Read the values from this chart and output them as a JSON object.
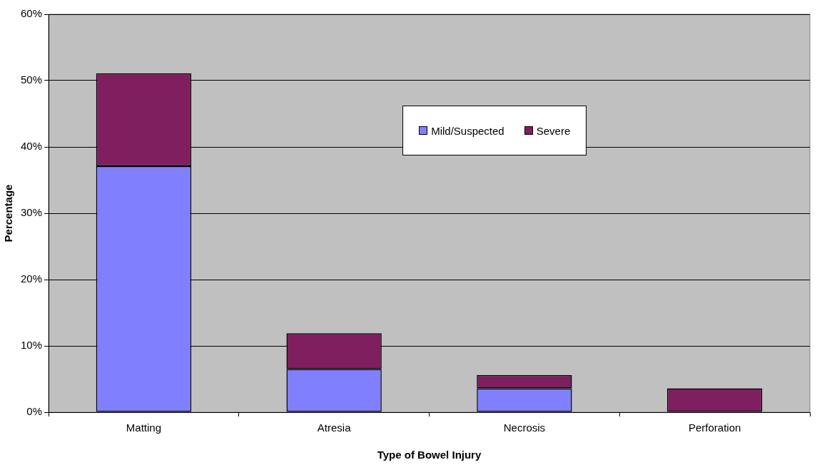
{
  "chart_data": {
    "type": "bar",
    "stacked": true,
    "xlabel": "Type of Bowel Injury",
    "ylabel": "Percentage",
    "categories": [
      "Matting",
      "Atresia",
      "Necrosis",
      "Perforation"
    ],
    "series": [
      {
        "name": "Mild/Suspected",
        "color": "#8080ff",
        "values": [
          37.1,
          6.5,
          3.6,
          0
        ]
      },
      {
        "name": "Severe",
        "color": "#7f1f5f",
        "values": [
          14.0,
          5.4,
          2.0,
          3.6
        ]
      }
    ],
    "ylim": [
      0,
      60
    ],
    "yticks": [
      {
        "value": 0,
        "label": "0%"
      },
      {
        "value": 10,
        "label": "10%"
      },
      {
        "value": 20,
        "label": "20%"
      },
      {
        "value": 30,
        "label": "30%"
      },
      {
        "value": 40,
        "label": "40%"
      },
      {
        "value": 50,
        "label": "50%"
      },
      {
        "value": 60,
        "label": "60%"
      }
    ],
    "grid": "y",
    "legend": "top"
  }
}
